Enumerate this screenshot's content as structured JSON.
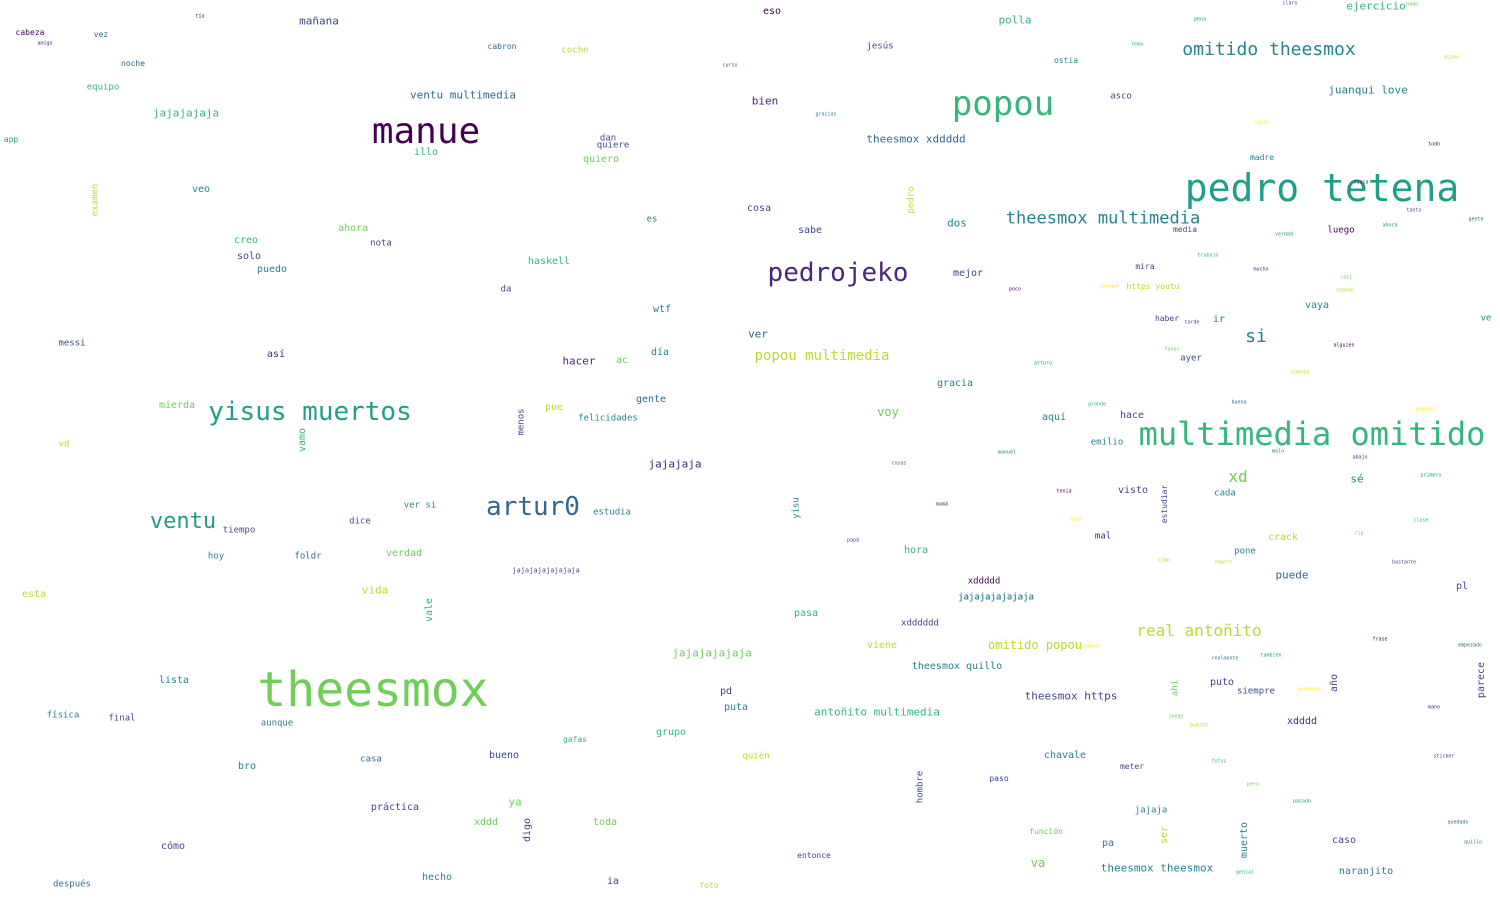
{
  "palette": [
    "#440154",
    "#482878",
    "#3e4989",
    "#31688e",
    "#26828e",
    "#1f9e89",
    "#35b779",
    "#6ece58",
    "#b5de2b",
    "#fde725"
  ],
  "words": [
    {
      "text": "theesmox",
      "size": 48,
      "color": "#6ece58"
    },
    {
      "text": "pedro tetena",
      "size": 38,
      "color": "#1f9e89"
    },
    {
      "text": "manue",
      "size": 36,
      "color": "#440154"
    },
    {
      "text": "popou",
      "size": 34,
      "color": "#35b779"
    },
    {
      "text": "multimedia omitido",
      "size": 32,
      "color": "#35b779"
    },
    {
      "text": "pedrojeko",
      "size": 26,
      "color": "#482878"
    },
    {
      "text": "yisus muertos",
      "size": 26,
      "color": "#1f9e89"
    },
    {
      "text": "artur0",
      "size": 26,
      "color": "#31688e"
    },
    {
      "text": "ventu",
      "size": 22,
      "color": "#1f9e89"
    },
    {
      "text": "omitido theesmox",
      "size": 18,
      "color": "#26828e"
    },
    {
      "text": "theesmox multimedia",
      "size": 17,
      "color": "#26828e"
    },
    {
      "text": "real antoñito",
      "size": 16,
      "color": "#b5de2b"
    },
    {
      "text": "si",
      "size": 18,
      "color": "#26828e"
    },
    {
      "text": "xd",
      "size": 16,
      "color": "#6ece58"
    },
    {
      "text": "popou multimedia",
      "size": 14,
      "color": "#b5de2b"
    },
    {
      "text": "theesmox xddddd",
      "size": 11,
      "color": "#31688e"
    },
    {
      "text": "juanqui love",
      "size": 11,
      "color": "#26828e"
    },
    {
      "text": "ventu multimedia",
      "size": 11,
      "color": "#31688e"
    },
    {
      "text": "omitido popou",
      "size": 12,
      "color": "#b5de2b"
    },
    {
      "text": "antoñito multimedia",
      "size": 11,
      "color": "#35b779"
    },
    {
      "text": "theesmox theesmox",
      "size": 11,
      "color": "#26828e"
    },
    {
      "text": "theesmox https",
      "size": 11,
      "color": "#3e4989"
    },
    {
      "text": "theesmox quillo",
      "size": 10,
      "color": "#26828e"
    },
    {
      "text": "jajajajaja",
      "size": 11,
      "color": "#35b779"
    },
    {
      "text": "jajajaja",
      "size": 11,
      "color": "#482878"
    },
    {
      "text": "jajajajajaja",
      "size": 11,
      "color": "#6ece58"
    },
    {
      "text": "jajajajajajaja",
      "size": 9,
      "color": "#26828e"
    },
    {
      "text": "jajajajajajajaja",
      "size": 7,
      "color": "#3e4989"
    },
    {
      "text": "bien",
      "size": 11,
      "color": "#482878"
    },
    {
      "text": "hacer",
      "size": 11,
      "color": "#482878"
    },
    {
      "text": "mañana",
      "size": 11,
      "color": "#3e4989"
    },
    {
      "text": "eso",
      "size": 10,
      "color": "#440154"
    },
    {
      "text": "polla",
      "size": 11,
      "color": "#35b779"
    },
    {
      "text": "ejercicio",
      "size": 11,
      "color": "#35b779"
    },
    {
      "text": "cabeza",
      "size": 8,
      "color": "#440154"
    },
    {
      "text": "vez",
      "size": 8,
      "color": "#31688e"
    },
    {
      "text": "noche",
      "size": 8,
      "color": "#31688e"
    },
    {
      "text": "equipo",
      "size": 9,
      "color": "#35b779"
    },
    {
      "text": "app",
      "size": 8,
      "color": "#1f9e89"
    },
    {
      "text": "cabron",
      "size": 8,
      "color": "#31688e"
    },
    {
      "text": "coche",
      "size": 9,
      "color": "#b5de2b"
    },
    {
      "text": "jesús",
      "size": 9,
      "color": "#3e4989"
    },
    {
      "text": "ostia",
      "size": 8,
      "color": "#26828e"
    },
    {
      "text": "asco",
      "size": 9,
      "color": "#3e4989"
    },
    {
      "text": "illo",
      "size": 10,
      "color": "#35b779"
    },
    {
      "text": "quiero",
      "size": 10,
      "color": "#6ece58"
    },
    {
      "text": "quiere",
      "size": 9,
      "color": "#3e4989"
    },
    {
      "text": "dan",
      "size": 9,
      "color": "#3e4989"
    },
    {
      "text": "veo",
      "size": 10,
      "color": "#26828e"
    },
    {
      "text": "examen",
      "size": 9,
      "color": "#b5de2b",
      "vertical": true
    },
    {
      "text": "cosa",
      "size": 10,
      "color": "#3e4989"
    },
    {
      "text": "es",
      "size": 9,
      "color": "#26828e"
    },
    {
      "text": "sabe",
      "size": 10,
      "color": "#3e4989"
    },
    {
      "text": "pedro",
      "size": 9,
      "color": "#b5de2b",
      "vertical": true
    },
    {
      "text": "dos",
      "size": 11,
      "color": "#26828e"
    },
    {
      "text": "creo",
      "size": 10,
      "color": "#35b779"
    },
    {
      "text": "solo",
      "size": 10,
      "color": "#3e4989"
    },
    {
      "text": "puedo",
      "size": 10,
      "color": "#26828e"
    },
    {
      "text": "ahora",
      "size": 10,
      "color": "#6ece58"
    },
    {
      "text": "nota",
      "size": 9,
      "color": "#3e4989"
    },
    {
      "text": "haskell",
      "size": 10,
      "color": "#35b779"
    },
    {
      "text": "da",
      "size": 9,
      "color": "#3e4989"
    },
    {
      "text": "mejor",
      "size": 10,
      "color": "#3e4989"
    },
    {
      "text": "luego",
      "size": 9,
      "color": "#440154"
    },
    {
      "text": "media",
      "size": 8,
      "color": "#3e4989"
    },
    {
      "text": "madre",
      "size": 8,
      "color": "#26828e"
    },
    {
      "text": "mira",
      "size": 8,
      "color": "#3e4989"
    },
    {
      "text": "vaya",
      "size": 10,
      "color": "#26828e"
    },
    {
      "text": "haber",
      "size": 8,
      "color": "#3e4989"
    },
    {
      "text": "ir",
      "size": 10,
      "color": "#26828e"
    },
    {
      "text": "ayer",
      "size": 9,
      "color": "#3e4989"
    },
    {
      "text": "ve",
      "size": 9,
      "color": "#26828e"
    },
    {
      "text": "https youtu",
      "size": 8,
      "color": "#b5de2b"
    },
    {
      "text": "messi",
      "size": 9,
      "color": "#3e4989"
    },
    {
      "text": "así",
      "size": 10,
      "color": "#482878"
    },
    {
      "text": "ver",
      "size": 11,
      "color": "#31688e"
    },
    {
      "text": "wtf",
      "size": 10,
      "color": "#26828e"
    },
    {
      "text": "día",
      "size": 10,
      "color": "#26828e"
    },
    {
      "text": "ac",
      "size": 10,
      "color": "#6ece58"
    },
    {
      "text": "gracia",
      "size": 10,
      "color": "#26828e"
    },
    {
      "text": "voy",
      "size": 12,
      "color": "#6ece58"
    },
    {
      "text": "aquí",
      "size": 10,
      "color": "#26828e"
    },
    {
      "text": "hace",
      "size": 10,
      "color": "#3e4989"
    },
    {
      "text": "emilio",
      "size": 9,
      "color": "#26828e"
    },
    {
      "text": "gente",
      "size": 10,
      "color": "#31688e"
    },
    {
      "text": "pue",
      "size": 10,
      "color": "#b5de2b"
    },
    {
      "text": "menos",
      "size": 9,
      "color": "#3e4989",
      "vertical": true
    },
    {
      "text": "felicidades",
      "size": 9,
      "color": "#26828e"
    },
    {
      "text": "mierda",
      "size": 10,
      "color": "#6ece58"
    },
    {
      "text": "vamo",
      "size": 10,
      "color": "#35b779",
      "vertical": true
    },
    {
      "text": "vd",
      "size": 9,
      "color": "#b5de2b"
    },
    {
      "text": "sé",
      "size": 11,
      "color": "#26828e"
    },
    {
      "text": "visto",
      "size": 10,
      "color": "#3e4989"
    },
    {
      "text": "cada",
      "size": 9,
      "color": "#26828e"
    },
    {
      "text": "estudiar",
      "size": 8,
      "color": "#3e4989",
      "vertical": true
    },
    {
      "text": "yisu",
      "size": 9,
      "color": "#26828e",
      "vertical": true
    },
    {
      "text": "estudia",
      "size": 9,
      "color": "#26828e"
    },
    {
      "text": "tiempo",
      "size": 9,
      "color": "#3e4989"
    },
    {
      "text": "dice",
      "size": 9,
      "color": "#3e4989"
    },
    {
      "text": "ver si",
      "size": 9,
      "color": "#26828e"
    },
    {
      "text": "hoy",
      "size": 9,
      "color": "#26828e"
    },
    {
      "text": "foldr",
      "size": 9,
      "color": "#31688e"
    },
    {
      "text": "verdad",
      "size": 10,
      "color": "#6ece58"
    },
    {
      "text": "esta",
      "size": 10,
      "color": "#b5de2b"
    },
    {
      "text": "vida",
      "size": 11,
      "color": "#b5de2b"
    },
    {
      "text": "vale",
      "size": 10,
      "color": "#35b779",
      "vertical": true
    },
    {
      "text": "hora",
      "size": 10,
      "color": "#35b779"
    },
    {
      "text": "crack",
      "size": 10,
      "color": "#b5de2b"
    },
    {
      "text": "pone",
      "size": 9,
      "color": "#26828e"
    },
    {
      "text": "puede",
      "size": 11,
      "color": "#31688e"
    },
    {
      "text": "mal",
      "size": 9,
      "color": "#482878"
    },
    {
      "text": "xddddd",
      "size": 9,
      "color": "#440154"
    },
    {
      "text": "jajajajajajaja",
      "size": 9,
      "color": "#26828e"
    },
    {
      "text": "pl",
      "size": 10,
      "color": "#3e4989"
    },
    {
      "text": "pasa",
      "size": 10,
      "color": "#35b779"
    },
    {
      "text": "xdddddd",
      "size": 9,
      "color": "#3e4989"
    },
    {
      "text": "viene",
      "size": 10,
      "color": "#b5de2b"
    },
    {
      "text": "lista",
      "size": 10,
      "color": "#26828e"
    },
    {
      "text": "física",
      "size": 9,
      "color": "#26828e"
    },
    {
      "text": "final",
      "size": 9,
      "color": "#3e4989"
    },
    {
      "text": "aunque",
      "size": 9,
      "color": "#26828e"
    },
    {
      "text": "pd",
      "size": 10,
      "color": "#3e4989"
    },
    {
      "text": "puta",
      "size": 10,
      "color": "#26828e"
    },
    {
      "text": "grupo",
      "size": 10,
      "color": "#35b779"
    },
    {
      "text": "bueno",
      "size": 10,
      "color": "#3e4989"
    },
    {
      "text": "quién",
      "size": 9,
      "color": "#b5de2b"
    },
    {
      "text": "bro",
      "size": 10,
      "color": "#26828e"
    },
    {
      "text": "casa",
      "size": 9,
      "color": "#31688e"
    },
    {
      "text": "ya",
      "size": 11,
      "color": "#6ece58"
    },
    {
      "text": "práctica",
      "size": 10,
      "color": "#3e4989"
    },
    {
      "text": "xddd",
      "size": 10,
      "color": "#6ece58"
    },
    {
      "text": "digo",
      "size": 10,
      "color": "#3e4989",
      "vertical": true
    },
    {
      "text": "toda",
      "size": 10,
      "color": "#6ece58"
    },
    {
      "text": "hombre",
      "size": 9,
      "color": "#3e4989",
      "vertical": true
    },
    {
      "text": "chavale",
      "size": 10,
      "color": "#26828e"
    },
    {
      "text": "meter",
      "size": 8,
      "color": "#3e4989"
    },
    {
      "text": "puto",
      "size": 10,
      "color": "#3e4989"
    },
    {
      "text": "siempre",
      "size": 9,
      "color": "#3e4989"
    },
    {
      "text": "año",
      "size": 10,
      "color": "#3e4989",
      "vertical": true
    },
    {
      "text": "parece",
      "size": 10,
      "color": "#3e4989",
      "vertical": true
    },
    {
      "text": "xdddd",
      "size": 10,
      "color": "#482878"
    },
    {
      "text": "ahí",
      "size": 9,
      "color": "#6ece58",
      "vertical": true
    },
    {
      "text": "paso",
      "size": 8,
      "color": "#3e4989"
    },
    {
      "text": "jajaja",
      "size": 9,
      "color": "#26828e"
    },
    {
      "text": "muerto",
      "size": 10,
      "color": "#26828e",
      "vertical": true
    },
    {
      "text": "función",
      "size": 8,
      "color": "#6ece58"
    },
    {
      "text": "ser",
      "size": 10,
      "color": "#b5de2b",
      "vertical": true
    },
    {
      "text": "caso",
      "size": 10,
      "color": "#3e4989"
    },
    {
      "text": "pa",
      "size": 10,
      "color": "#26828e"
    },
    {
      "text": "naranjito",
      "size": 10,
      "color": "#26828e"
    },
    {
      "text": "va",
      "size": 12,
      "color": "#6ece58"
    },
    {
      "text": "entonce",
      "size": 8,
      "color": "#3e4989"
    },
    {
      "text": "cómo",
      "size": 10,
      "color": "#3e4989"
    },
    {
      "text": "después",
      "size": 9,
      "color": "#31688e"
    },
    {
      "text": "hecho",
      "size": 10,
      "color": "#26828e"
    },
    {
      "text": "ia",
      "size": 10,
      "color": "#3e4989"
    },
    {
      "text": "foto",
      "size": 8,
      "color": "#b5de2b"
    },
    {
      "text": "gafas",
      "size": 8,
      "color": "#35b779"
    }
  ],
  "tiny_words": [
    "tío",
    "amigo",
    "claro",
    "curso",
    "gracias",
    "pena",
    "tema",
    "nada",
    "mismo",
    "igual",
    "todo",
    "nunca",
    "tanto",
    "gente",
    "ahora",
    "verdad",
    "trabajo",
    "casi",
    "cuando",
    "porque",
    "poco",
    "mucho",
    "tarde",
    "buena",
    "malo",
    "primero",
    "clase",
    "rip",
    "report",
    "profesor",
    "frase",
    "mano",
    "sticker",
    "empezado",
    "realmente",
    "también",
    "fotos",
    "pero",
    "como",
    "algo",
    "tenía",
    "mamá",
    "papá",
    "cosas",
    "manuel",
    "arturo",
    "grande",
    "favor",
    "cuenta",
    "página",
    "alguien",
    "abajo",
    "bastante",
    "quedado",
    "quillo",
    "pasado",
    "genial",
    "juego",
    "puesto",
    "semana"
  ]
}
